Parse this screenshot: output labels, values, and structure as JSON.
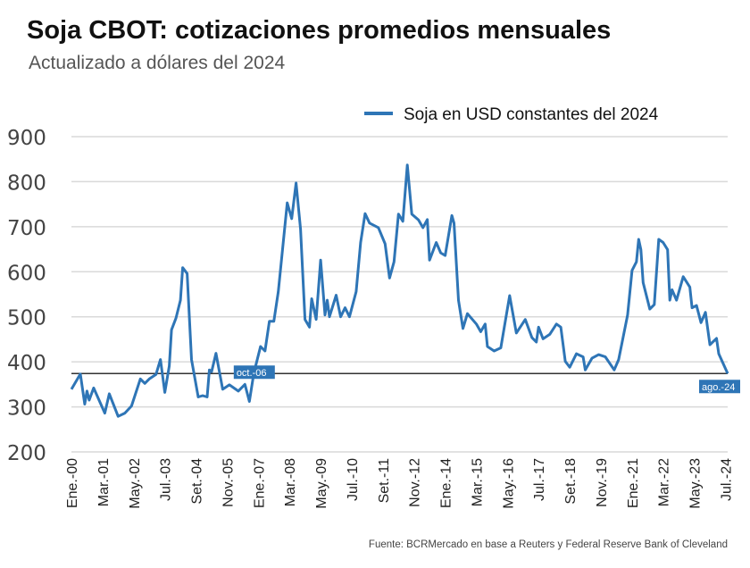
{
  "chart_data": {
    "type": "line",
    "title": "Soja CBOT: cotizaciones promedios mensuales",
    "subtitle": "Actualizado a dólares del 2024",
    "source": "Fuente: BCRMercado en base a Reuters y Federal Reserve Bank of Cleveland",
    "legend": {
      "position": "top-right"
    },
    "ylim": [
      200,
      900
    ],
    "yticks": [
      "200",
      "300",
      "400",
      "500",
      "600",
      "700",
      "800",
      "900"
    ],
    "xlim": [
      "2000-01",
      "2024-08"
    ],
    "xtick_labels": [
      "Ene.-00",
      "Mar.-01",
      "May.-02",
      "Jul.-03",
      "Set.-04",
      "Nov.-05",
      "Ene.-07",
      "Mar.-08",
      "May.-09",
      "Jul.-10",
      "Set.-11",
      "Nov.-12",
      "Ene.-14",
      "Mar.-15",
      "May.-16",
      "Jul.-17",
      "Set.-18",
      "Nov.-19",
      "Ene.-21",
      "Mar.-22",
      "May.-23",
      "Jul.-24"
    ],
    "grid": true,
    "colors": {
      "series": "#2e75b6",
      "reference_line": "#333333",
      "grid": "#d9d9d9"
    },
    "reference_line": {
      "value": 374,
      "labels": [
        {
          "text": "oct.-06",
          "date": "2006-10"
        },
        {
          "text": "ago.-24",
          "date": "2024-08"
        }
      ]
    },
    "series": [
      {
        "name": "Soja en USD constantes del 2024",
        "points": [
          [
            "2000-01",
            339
          ],
          [
            "2000-05",
            373
          ],
          [
            "2000-07",
            306
          ],
          [
            "2000-08",
            335
          ],
          [
            "2000-09",
            315
          ],
          [
            "2000-11",
            342
          ],
          [
            "2001-04",
            286
          ],
          [
            "2001-06",
            329
          ],
          [
            "2001-10",
            279
          ],
          [
            "2002-01",
            286
          ],
          [
            "2002-04",
            302
          ],
          [
            "2002-08",
            362
          ],
          [
            "2002-10",
            352
          ],
          [
            "2002-12",
            362
          ],
          [
            "2003-03",
            372
          ],
          [
            "2003-05",
            405
          ],
          [
            "2003-07",
            332
          ],
          [
            "2003-09",
            391
          ],
          [
            "2003-10",
            471
          ],
          [
            "2003-12",
            497
          ],
          [
            "2004-02",
            537
          ],
          [
            "2004-03",
            609
          ],
          [
            "2004-05",
            596
          ],
          [
            "2004-07",
            405
          ],
          [
            "2004-10",
            322
          ],
          [
            "2004-12",
            325
          ],
          [
            "2005-02",
            322
          ],
          [
            "2005-03",
            382
          ],
          [
            "2005-04",
            378
          ],
          [
            "2005-06",
            419
          ],
          [
            "2005-09",
            339
          ],
          [
            "2005-12",
            349
          ],
          [
            "2006-04",
            335
          ],
          [
            "2006-07",
            350
          ],
          [
            "2006-09",
            312
          ],
          [
            "2006-11",
            375
          ],
          [
            "2007-02",
            434
          ],
          [
            "2007-04",
            424
          ],
          [
            "2007-06",
            490
          ],
          [
            "2007-08",
            490
          ],
          [
            "2007-10",
            556
          ],
          [
            "2008-02",
            753
          ],
          [
            "2008-04",
            718
          ],
          [
            "2008-06",
            797
          ],
          [
            "2008-08",
            695
          ],
          [
            "2008-10",
            494
          ],
          [
            "2008-12",
            477
          ],
          [
            "2009-01",
            540
          ],
          [
            "2009-03",
            494
          ],
          [
            "2009-05",
            626
          ],
          [
            "2009-07",
            504
          ],
          [
            "2009-08",
            537
          ],
          [
            "2009-09",
            500
          ],
          [
            "2009-12",
            548
          ],
          [
            "2010-02",
            500
          ],
          [
            "2010-04",
            520
          ],
          [
            "2010-06",
            500
          ],
          [
            "2010-09",
            556
          ],
          [
            "2010-11",
            665
          ],
          [
            "2011-01",
            729
          ],
          [
            "2011-03",
            708
          ],
          [
            "2011-07",
            698
          ],
          [
            "2011-10",
            662
          ],
          [
            "2011-12",
            586
          ],
          [
            "2012-02",
            622
          ],
          [
            "2012-04",
            728
          ],
          [
            "2012-06",
            712
          ],
          [
            "2012-08",
            837
          ],
          [
            "2012-10",
            728
          ],
          [
            "2013-01",
            715
          ],
          [
            "2013-03",
            698
          ],
          [
            "2013-05",
            716
          ],
          [
            "2013-06",
            626
          ],
          [
            "2013-09",
            665
          ],
          [
            "2013-11",
            642
          ],
          [
            "2014-01",
            636
          ],
          [
            "2014-04",
            725
          ],
          [
            "2014-05",
            708
          ],
          [
            "2014-07",
            537
          ],
          [
            "2014-09",
            474
          ],
          [
            "2014-11",
            507
          ],
          [
            "2015-03",
            484
          ],
          [
            "2015-05",
            467
          ],
          [
            "2015-07",
            484
          ],
          [
            "2015-08",
            434
          ],
          [
            "2015-11",
            424
          ],
          [
            "2016-02",
            431
          ],
          [
            "2016-06",
            547
          ],
          [
            "2016-09",
            464
          ],
          [
            "2017-01",
            494
          ],
          [
            "2017-04",
            454
          ],
          [
            "2017-06",
            444
          ],
          [
            "2017-07",
            477
          ],
          [
            "2017-09",
            451
          ],
          [
            "2017-12",
            461
          ],
          [
            "2018-03",
            484
          ],
          [
            "2018-05",
            477
          ],
          [
            "2018-07",
            401
          ],
          [
            "2018-09",
            388
          ],
          [
            "2018-12",
            418
          ],
          [
            "2019-03",
            411
          ],
          [
            "2019-04",
            382
          ],
          [
            "2019-07",
            408
          ],
          [
            "2019-10",
            416
          ],
          [
            "2020-01",
            411
          ],
          [
            "2020-05",
            382
          ],
          [
            "2020-07",
            405
          ],
          [
            "2020-11",
            504
          ],
          [
            "2021-01",
            603
          ],
          [
            "2021-03",
            622
          ],
          [
            "2021-04",
            672
          ],
          [
            "2021-05",
            649
          ],
          [
            "2021-06",
            576
          ],
          [
            "2021-09",
            517
          ],
          [
            "2021-11",
            527
          ],
          [
            "2022-01",
            672
          ],
          [
            "2022-03",
            665
          ],
          [
            "2022-05",
            649
          ],
          [
            "2022-06",
            537
          ],
          [
            "2022-07",
            560
          ],
          [
            "2022-09",
            537
          ],
          [
            "2022-12",
            589
          ],
          [
            "2023-03",
            566
          ],
          [
            "2023-04",
            520
          ],
          [
            "2023-06",
            525
          ],
          [
            "2023-08",
            487
          ],
          [
            "2023-10",
            510
          ],
          [
            "2023-12",
            438
          ],
          [
            "2024-03",
            452
          ],
          [
            "2024-04",
            418
          ],
          [
            "2024-08",
            374
          ]
        ]
      }
    ]
  }
}
